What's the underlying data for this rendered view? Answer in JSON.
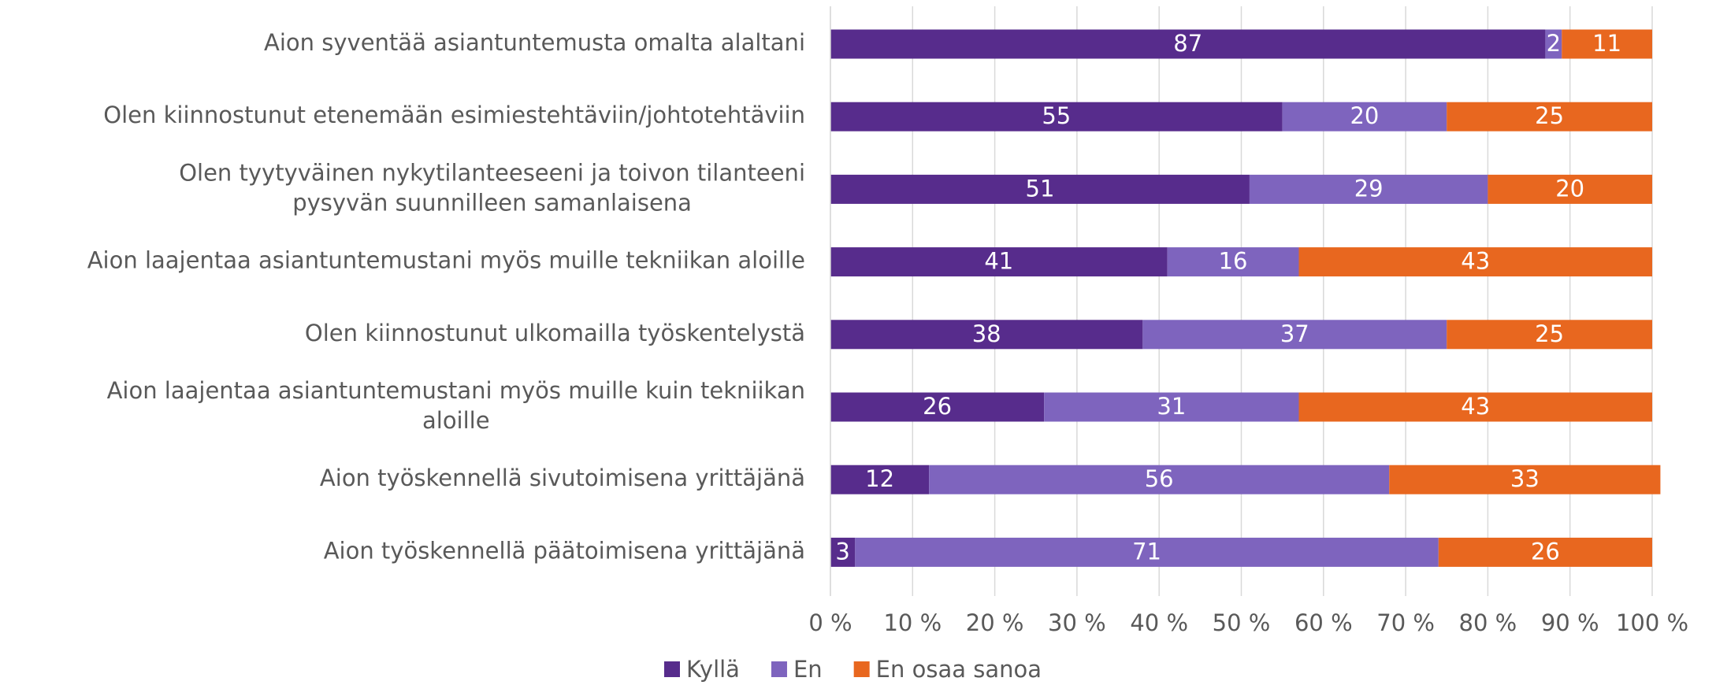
{
  "chart_data": {
    "type": "stacked_bar_horizontal",
    "categories": [
      "Aion syventää asiantuntemusta omalta alaltani",
      "Olen kiinnostunut etenemään esimiestehtäviin/johtotehtäviin",
      "Olen tyytyväinen nykytilanteeseeni ja toivon tilanteeni\npysyvän suunnilleen samanlaisena",
      "Aion laajentaa asiantuntemustani myös muille tekniikan aloille",
      "Olen kiinnostunut ulkomailla työskentelystä",
      "Aion laajentaa asiantuntemustani myös muille kuin tekniikan\naloille",
      "Aion työskennellä sivutoimisena yrittäjänä",
      "Aion työskennellä päätoimisena yrittäjänä"
    ],
    "series": [
      {
        "name": "Kyllä",
        "color": "#572c8c",
        "values": [
          87,
          55,
          51,
          41,
          38,
          26,
          12,
          3
        ]
      },
      {
        "name": "En",
        "color": "#7e64be",
        "values": [
          2,
          20,
          29,
          16,
          37,
          31,
          56,
          71
        ]
      },
      {
        "name": "En osaa sanoa",
        "color": "#e8671f",
        "values": [
          11,
          25,
          20,
          43,
          25,
          43,
          33,
          26
        ]
      }
    ],
    "xlim": [
      0,
      100
    ],
    "xticks": [
      {
        "value": 0,
        "label": "0 %"
      },
      {
        "value": 10,
        "label": "10 %"
      },
      {
        "value": 20,
        "label": "20 %"
      },
      {
        "value": 30,
        "label": "30 %"
      },
      {
        "value": 40,
        "label": "40 %"
      },
      {
        "value": 50,
        "label": "50 %"
      },
      {
        "value": 60,
        "label": "60 %"
      },
      {
        "value": 70,
        "label": "70 %"
      },
      {
        "value": 80,
        "label": "80 %"
      },
      {
        "value": 90,
        "label": "90 %"
      },
      {
        "value": 100,
        "label": "100 %"
      }
    ],
    "grid": true,
    "legend": "bottom"
  }
}
